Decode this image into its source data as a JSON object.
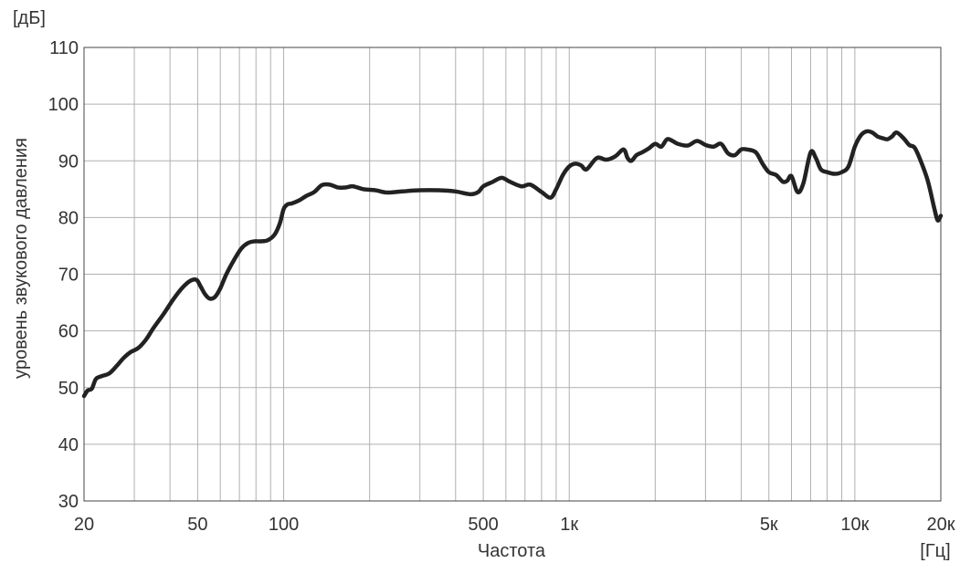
{
  "chart_data": {
    "type": "line",
    "title": "",
    "xlabel": "Частота",
    "ylabel": "уровень звукового давления",
    "x_unit": "[Гц]",
    "y_unit": "[дБ]",
    "x_scale": "log",
    "xlim": [
      20,
      20000
    ],
    "ylim": [
      30,
      110
    ],
    "grid": true,
    "legend": "none",
    "line_color": "#222222",
    "grid_color": "#b0b0b0",
    "x_ticks": [
      {
        "value": 20,
        "label": "20"
      },
      {
        "value": 50,
        "label": "50"
      },
      {
        "value": 100,
        "label": "100"
      },
      {
        "value": 500,
        "label": "500"
      },
      {
        "value": 1000,
        "label": "1к"
      },
      {
        "value": 5000,
        "label": "5к"
      },
      {
        "value": 10000,
        "label": "10к"
      },
      {
        "value": 20000,
        "label": "20к"
      }
    ],
    "y_ticks": [
      {
        "value": 30,
        "label": "30"
      },
      {
        "value": 40,
        "label": "40"
      },
      {
        "value": 50,
        "label": "50"
      },
      {
        "value": 60,
        "label": "60"
      },
      {
        "value": 70,
        "label": "70"
      },
      {
        "value": 80,
        "label": "80"
      },
      {
        "value": 90,
        "label": "90"
      },
      {
        "value": 100,
        "label": "100"
      },
      {
        "value": 110,
        "label": "110"
      }
    ],
    "x_gridlines": [
      20,
      30,
      40,
      50,
      60,
      70,
      80,
      90,
      100,
      200,
      300,
      400,
      500,
      600,
      700,
      800,
      900,
      1000,
      2000,
      3000,
      4000,
      5000,
      6000,
      7000,
      8000,
      9000,
      10000,
      20000
    ],
    "series": [
      {
        "x": [
          20,
          20.6,
          21.3,
          22,
          23,
          24.5,
          26,
          27.5,
          29,
          31,
          33,
          35,
          38,
          41,
          44,
          47,
          49.5,
          51,
          53,
          55,
          57.5,
          60,
          63,
          67,
          71,
          75,
          79,
          83,
          88,
          93,
          97,
          100,
          103,
          107,
          113,
          120,
          128,
          136,
          145,
          155,
          165,
          175,
          190,
          210,
          230,
          260,
          300,
          350,
          400,
          450,
          480,
          500,
          540,
          580,
          620,
          680,
          730,
          800,
          860,
          900,
          950,
          1000,
          1050,
          1100,
          1150,
          1250,
          1350,
          1450,
          1550,
          1600,
          1650,
          1720,
          1800,
          1900,
          2000,
          2100,
          2200,
          2300,
          2400,
          2600,
          2800,
          3000,
          3200,
          3400,
          3600,
          3800,
          4000,
          4200,
          4500,
          4750,
          5000,
          5300,
          5600,
          5800,
          6000,
          6300,
          6600,
          7000,
          7300,
          7600,
          8000,
          8500,
          9000,
          9500,
          10000,
          10500,
          11000,
          11500,
          12000,
          12500,
          13000,
          13500,
          14000,
          14800,
          15500,
          16200,
          17000,
          18000,
          19000,
          19500,
          20000
        ],
        "values": [
          48.5,
          49.5,
          49.8,
          51.5,
          52.0,
          52.5,
          53.8,
          55.2,
          56.2,
          57.0,
          58.5,
          60.5,
          63.0,
          65.5,
          67.5,
          68.8,
          69.0,
          68.0,
          66.5,
          65.7,
          66.0,
          67.5,
          70.0,
          72.5,
          74.5,
          75.5,
          75.8,
          75.8,
          76.0,
          77.0,
          79.0,
          81.5,
          82.3,
          82.5,
          83.0,
          83.8,
          84.5,
          85.7,
          85.8,
          85.3,
          85.3,
          85.5,
          85.0,
          84.8,
          84.4,
          84.6,
          84.8,
          84.8,
          84.6,
          84.1,
          84.5,
          85.5,
          86.3,
          87.0,
          86.3,
          85.5,
          85.8,
          84.5,
          83.5,
          85.0,
          87.5,
          89.0,
          89.5,
          89.2,
          88.5,
          90.5,
          90.2,
          90.8,
          92.0,
          90.5,
          90.0,
          91.0,
          91.5,
          92.2,
          93.0,
          92.5,
          93.8,
          93.5,
          93.0,
          92.7,
          93.5,
          92.8,
          92.5,
          93.0,
          91.3,
          91.0,
          92.0,
          92.0,
          91.5,
          89.5,
          88.0,
          87.5,
          86.3,
          86.5,
          87.3,
          84.5,
          86.0,
          91.5,
          90.5,
          88.5,
          88.0,
          87.7,
          88.0,
          89.0,
          92.5,
          94.5,
          95.2,
          95.0,
          94.3,
          94.0,
          93.8,
          94.3,
          95.0,
          94.0,
          92.8,
          92.3,
          90.0,
          86.5,
          81.5,
          79.5,
          80.3
        ]
      }
    ]
  }
}
